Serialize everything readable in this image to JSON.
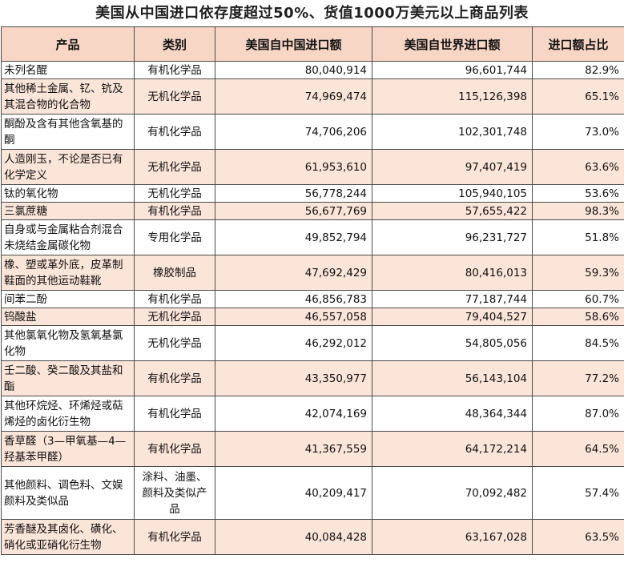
{
  "title": "美国从中国进口依存度超过50%、货值1000万美元以上商品列表",
  "columns": [
    "产品",
    "类别",
    "美国自中国进口额",
    "美国自世界进口额",
    "进口额占比"
  ],
  "rows": [
    {
      "product": "未列名醌",
      "category": "有机化学品",
      "china": "80,040,914",
      "world": "96,601,744",
      "share": "82.9%"
    },
    {
      "product": "其他稀土金属、钇、钪及其混合物的化合物",
      "category": "无机化学品",
      "china": "74,969,474",
      "world": "115,126,398",
      "share": "65.1%"
    },
    {
      "product": "酮酚及含有其他含氧基的酮",
      "category": "有机化学品",
      "china": "74,706,206",
      "world": "102,301,748",
      "share": "73.0%"
    },
    {
      "product": "人造刚玉，不论是否已有化学定义",
      "category": "无机化学品",
      "china": "61,953,610",
      "world": "97,407,419",
      "share": "63.6%"
    },
    {
      "product": "钛的氧化物",
      "category": "无机化学品",
      "china": "56,778,244",
      "world": "105,940,105",
      "share": "53.6%"
    },
    {
      "product": "三氯蔗糖",
      "category": "有机化学品",
      "china": "56,677,769",
      "world": "57,655,422",
      "share": "98.3%"
    },
    {
      "product": "自身或与金属粘合剂混合未烧结金属碳化物",
      "category": "专用化学品",
      "china": "49,852,794",
      "world": "96,231,727",
      "share": "51.8%"
    },
    {
      "product": "橡、塑或革外底，皮革制鞋面的其他运动鞋靴",
      "category": "橡胶制品",
      "china": "47,692,429",
      "world": "80,416,013",
      "share": "59.3%"
    },
    {
      "product": "间苯二酚",
      "category": "有机化学品",
      "china": "46,856,783",
      "world": "77,187,744",
      "share": "60.7%"
    },
    {
      "product": "钨酸盐",
      "category": "无机化学品",
      "china": "46,557,058",
      "world": "79,404,527",
      "share": "58.6%"
    },
    {
      "product": "其他氯氧化物及氢氧基氯化物",
      "category": "无机化学品",
      "china": "46,292,012",
      "world": "54,805,056",
      "share": "84.5%"
    },
    {
      "product": "壬二酸、癸二酸及其盐和酯",
      "category": "有机化学品",
      "china": "43,350,977",
      "world": "56,143,104",
      "share": "77.2%"
    },
    {
      "product": "其他环烷烃、环烯烃或萜烯烃的卤化衍生物",
      "category": "有机化学品",
      "china": "42,074,169",
      "world": "48,364,344",
      "share": "87.0%"
    },
    {
      "product": "香草醛（3—甲氧基—4—羟基苯甲醛）",
      "category": "有机化学品",
      "china": "41,367,559",
      "world": "64,172,214",
      "share": "64.5%"
    },
    {
      "product": "其他颜料、调色料、文娱颜料及类似品",
      "category": "涂料、油墨、颜料及类似产品",
      "china": "40,209,417",
      "world": "70,092,482",
      "share": "57.4%"
    },
    {
      "product": "芳香醚及其卤化、磺化、硝化或亚硝化衍生物",
      "category": "有机化学品",
      "china": "40,084,428",
      "world": "63,167,028",
      "share": "63.5%"
    }
  ]
}
